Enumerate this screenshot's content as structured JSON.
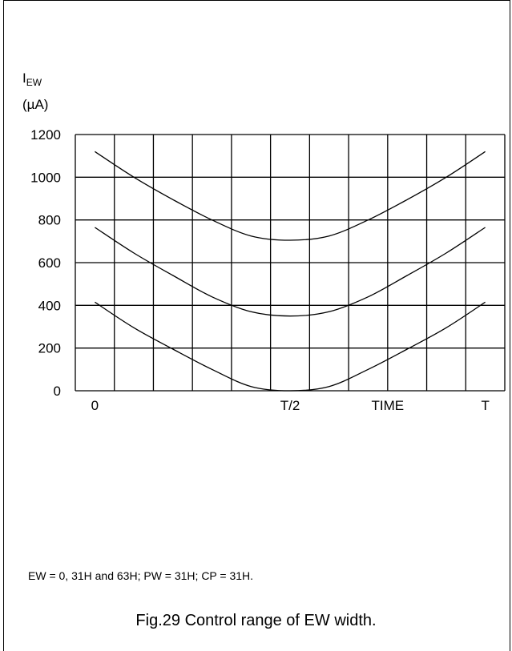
{
  "chart_data": {
    "type": "line",
    "ylabel_main": "I",
    "ylabel_subscript": "EW",
    "ylabel_unit": "(µA)",
    "ylim": [
      0,
      1200
    ],
    "yticks": [
      0,
      200,
      400,
      600,
      800,
      1000,
      1200
    ],
    "xlim": [
      -0.05,
      1.05
    ],
    "grid": true,
    "x_gridlines": [
      -0.05,
      0.05,
      0.15,
      0.25,
      0.35,
      0.45,
      0.55,
      0.65,
      0.75,
      0.85,
      0.95,
      1.05
    ],
    "xtick_labels": [
      {
        "x": 0,
        "label": "0"
      },
      {
        "x": 0.5,
        "label": "T/2"
      },
      {
        "x": 0.75,
        "label": "TIME"
      },
      {
        "x": 1.0,
        "label": "T"
      }
    ],
    "x": [
      0,
      0.1,
      0.2,
      0.3,
      0.4,
      0.5,
      0.6,
      0.7,
      0.8,
      0.9,
      1.0
    ],
    "series": [
      {
        "values": [
          1120,
          1000,
          895,
          800,
          725,
          705,
          725,
          800,
          895,
          1000,
          1120
        ]
      },
      {
        "values": [
          765,
          645,
          540,
          440,
          370,
          350,
          370,
          440,
          540,
          645,
          765
        ]
      },
      {
        "values": [
          415,
          295,
          195,
          100,
          20,
          0,
          20,
          100,
          195,
          295,
          415
        ]
      }
    ]
  },
  "note": "EW = 0, 31H and 63H; PW = 31H; CP = 31H.",
  "caption": "Fig.29  Control range of EW width."
}
